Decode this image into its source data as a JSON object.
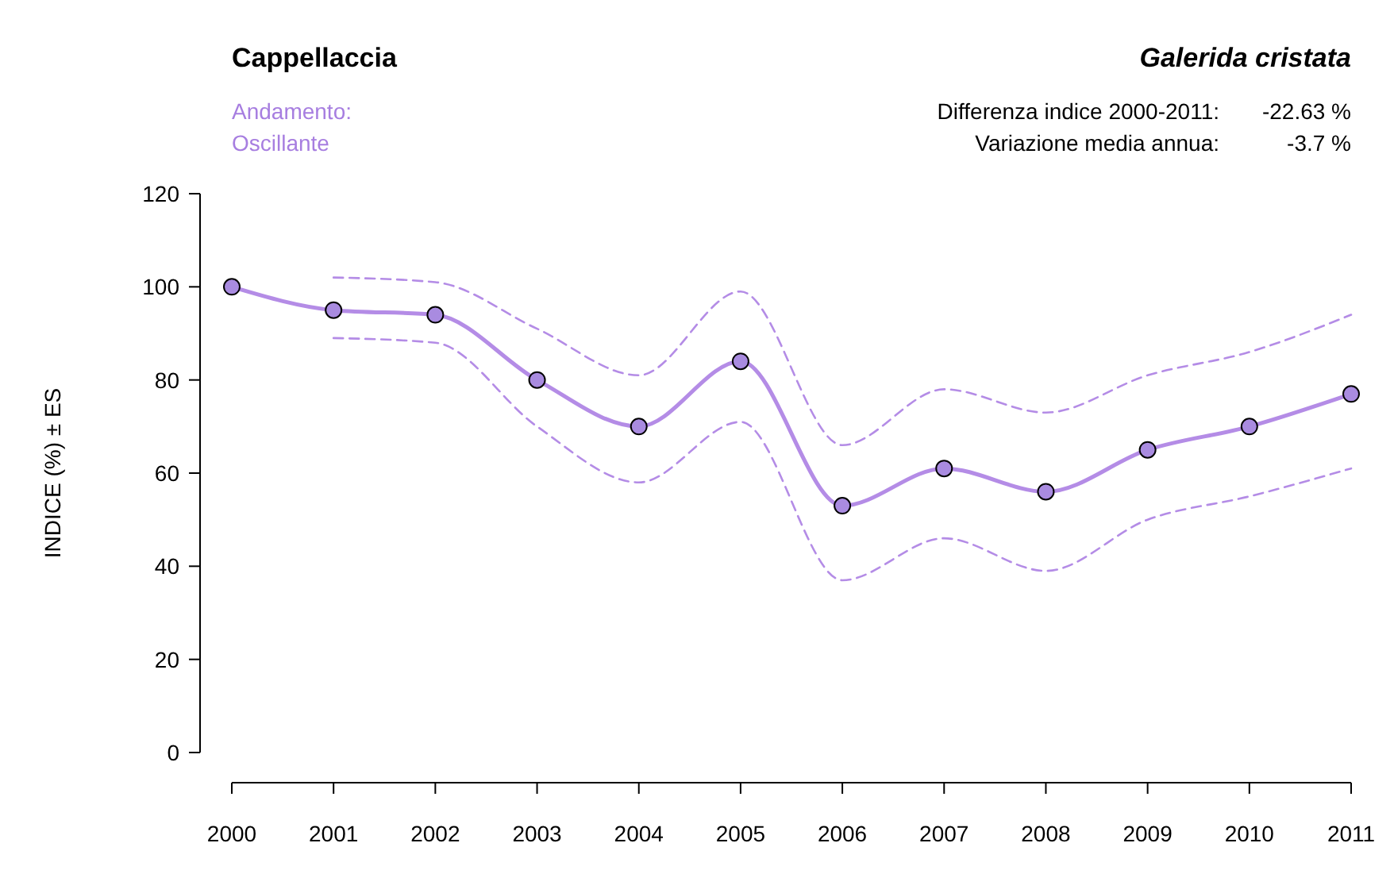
{
  "chart_data": {
    "type": "line",
    "title": "Cappellaccia",
    "subtitle": "Galerida cristata",
    "ylabel": "INDICE (%) ± ES",
    "annotations": [
      "Andamento:",
      "Oscillante",
      "Differenza indice 2000-2011:",
      "-22.63 %",
      "Variazione media annua:",
      "-3.7 %"
    ],
    "x": [
      2000,
      2001,
      2002,
      2003,
      2004,
      2005,
      2006,
      2007,
      2008,
      2009,
      2010,
      2011
    ],
    "series": [
      {
        "color": "#b48ce6",
        "marker": "circle",
        "line_style": "solid",
        "values": [
          100,
          95,
          94,
          80,
          70,
          84,
          53,
          61,
          56,
          65,
          70,
          77
        ]
      },
      {
        "color": "#b48ce6",
        "marker": "none",
        "line_style": "dashed",
        "values": [
          null,
          102,
          101,
          91,
          81,
          99,
          66,
          78,
          73,
          81,
          86,
          94
        ]
      },
      {
        "color": "#b48ce6",
        "marker": "none",
        "line_style": "dashed",
        "values": [
          null,
          89,
          88,
          70,
          58,
          71,
          37,
          46,
          39,
          50,
          55,
          61
        ]
      }
    ],
    "xlim": [
      2000,
      2011
    ],
    "xticks": [
      2000,
      2001,
      2002,
      2003,
      2004,
      2005,
      2006,
      2007,
      2008,
      2009,
      2010,
      2011
    ],
    "ylim": [
      0,
      120
    ],
    "yticks": [
      0,
      20,
      40,
      60,
      80,
      100,
      120
    ],
    "grid": false
  }
}
